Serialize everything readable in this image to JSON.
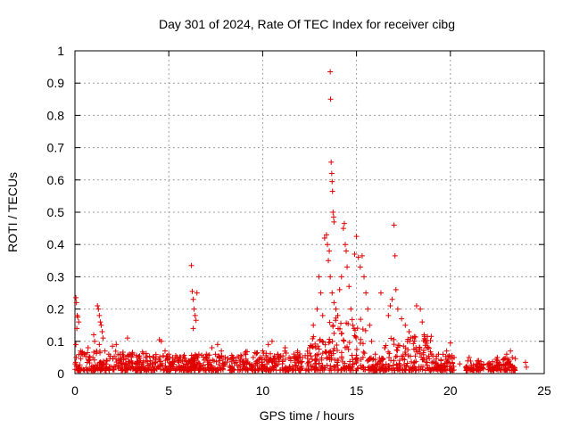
{
  "chart_data": {
    "type": "scatter",
    "title": "Day 301 of 2024, Rate Of TEC Index for receiver cibg",
    "xlabel": "GPS time / hours",
    "ylabel": "ROTI / TECUs",
    "xlim": [
      0,
      25
    ],
    "ylim": [
      0,
      1
    ],
    "xticks": [
      0,
      5,
      10,
      15,
      20,
      25
    ],
    "yticks": [
      0,
      0.1,
      0.2,
      0.3,
      0.4,
      0.5,
      0.6,
      0.7,
      0.8,
      0.9,
      1
    ],
    "ytick_labels": [
      "0",
      "0.1",
      "0.2",
      "0.3",
      "0.4",
      "0.5",
      "0.6",
      "0.7",
      "0.8",
      "0.9",
      "1"
    ],
    "grid": true,
    "marker": "+",
    "color": "#e00000",
    "series": [
      {
        "name": "ROTI",
        "points": [
          [
            0.05,
            0.235
          ],
          [
            0.08,
            0.22
          ],
          [
            0.12,
            0.18
          ],
          [
            0.15,
            0.175
          ],
          [
            0.1,
            0.14
          ],
          [
            0.2,
            0.16
          ],
          [
            0.05,
            0.09
          ],
          [
            0.3,
            0.07
          ],
          [
            0.5,
            0.06
          ],
          [
            0.7,
            0.08
          ],
          [
            0.8,
            0.05
          ],
          [
            1.0,
            0.12
          ],
          [
            1.05,
            0.1
          ],
          [
            1.2,
            0.21
          ],
          [
            1.25,
            0.2
          ],
          [
            1.3,
            0.18
          ],
          [
            1.35,
            0.16
          ],
          [
            1.4,
            0.15
          ],
          [
            1.45,
            0.13
          ],
          [
            1.5,
            0.11
          ],
          [
            1.3,
            0.09
          ],
          [
            1.6,
            0.07
          ],
          [
            1.8,
            0.06
          ],
          [
            2.0,
            0.085
          ],
          [
            2.2,
            0.09
          ],
          [
            2.4,
            0.06
          ],
          [
            2.6,
            0.05
          ],
          [
            2.8,
            0.11
          ],
          [
            3.0,
            0.05
          ],
          [
            3.5,
            0.04
          ],
          [
            4.0,
            0.03
          ],
          [
            4.2,
            0.05
          ],
          [
            4.5,
            0.105
          ],
          [
            4.6,
            0.1
          ],
          [
            4.8,
            0.07
          ],
          [
            5.0,
            0.06
          ],
          [
            5.2,
            0.05
          ],
          [
            5.5,
            0.04
          ],
          [
            6.0,
            0.03
          ],
          [
            6.2,
            0.335
          ],
          [
            6.25,
            0.255
          ],
          [
            6.3,
            0.23
          ],
          [
            6.35,
            0.2
          ],
          [
            6.4,
            0.18
          ],
          [
            6.45,
            0.165
          ],
          [
            6.3,
            0.14
          ],
          [
            6.5,
            0.25
          ],
          [
            6.6,
            0.06
          ],
          [
            7.0,
            0.06
          ],
          [
            7.3,
            0.08
          ],
          [
            7.6,
            0.09
          ],
          [
            7.8,
            0.07
          ],
          [
            8.0,
            0.05
          ],
          [
            8.5,
            0.04
          ],
          [
            9.0,
            0.035
          ],
          [
            9.5,
            0.05
          ],
          [
            10.0,
            0.07
          ],
          [
            10.3,
            0.09
          ],
          [
            10.5,
            0.1
          ],
          [
            10.8,
            0.06
          ],
          [
            11.2,
            0.08
          ],
          [
            11.5,
            0.04
          ],
          [
            12.0,
            0.05
          ],
          [
            12.5,
            0.08
          ],
          [
            12.7,
            0.15
          ],
          [
            12.9,
            0.2
          ],
          [
            13.0,
            0.3
          ],
          [
            13.1,
            0.25
          ],
          [
            13.2,
            0.18
          ],
          [
            13.3,
            0.42
          ],
          [
            13.4,
            0.43
          ],
          [
            13.45,
            0.4
          ],
          [
            13.5,
            0.35
          ],
          [
            13.55,
            0.38
          ],
          [
            13.6,
            0.935
          ],
          [
            13.62,
            0.85
          ],
          [
            13.65,
            0.655
          ],
          [
            13.68,
            0.62
          ],
          [
            13.7,
            0.595
          ],
          [
            13.72,
            0.565
          ],
          [
            13.75,
            0.5
          ],
          [
            13.78,
            0.485
          ],
          [
            13.8,
            0.47
          ],
          [
            13.6,
            0.3
          ],
          [
            13.7,
            0.25
          ],
          [
            13.8,
            0.22
          ],
          [
            13.9,
            0.2
          ],
          [
            14.0,
            0.18
          ],
          [
            14.1,
            0.26
          ],
          [
            14.2,
            0.3
          ],
          [
            14.3,
            0.45
          ],
          [
            14.35,
            0.465
          ],
          [
            14.4,
            0.4
          ],
          [
            14.45,
            0.38
          ],
          [
            14.5,
            0.33
          ],
          [
            14.6,
            0.27
          ],
          [
            14.7,
            0.2
          ],
          [
            14.8,
            0.15
          ],
          [
            14.9,
            0.37
          ],
          [
            15.0,
            0.425
          ],
          [
            15.1,
            0.36
          ],
          [
            15.2,
            0.33
          ],
          [
            15.3,
            0.365
          ],
          [
            15.4,
            0.3
          ],
          [
            15.5,
            0.25
          ],
          [
            15.6,
            0.2
          ],
          [
            15.7,
            0.15
          ],
          [
            15.8,
            0.1
          ],
          [
            16.0,
            0.06
          ],
          [
            16.3,
            0.25
          ],
          [
            16.5,
            0.08
          ],
          [
            16.7,
            0.18
          ],
          [
            16.8,
            0.21
          ],
          [
            16.9,
            0.23
          ],
          [
            17.0,
            0.46
          ],
          [
            17.05,
            0.365
          ],
          [
            17.1,
            0.26
          ],
          [
            17.2,
            0.2
          ],
          [
            17.4,
            0.17
          ],
          [
            17.6,
            0.15
          ],
          [
            17.8,
            0.13
          ],
          [
            18.0,
            0.11
          ],
          [
            18.2,
            0.21
          ],
          [
            18.4,
            0.2
          ],
          [
            18.5,
            0.16
          ],
          [
            18.6,
            0.12
          ],
          [
            18.8,
            0.08
          ],
          [
            19.0,
            0.06
          ],
          [
            19.5,
            0.04
          ],
          [
            19.8,
            0.07
          ],
          [
            20.0,
            0.095
          ],
          [
            20.2,
            0.05
          ],
          [
            20.5,
            0.03
          ],
          [
            21.0,
            0.05
          ],
          [
            21.5,
            0.04
          ],
          [
            22.0,
            0.03
          ],
          [
            22.5,
            0.05
          ],
          [
            23.0,
            0.06
          ],
          [
            23.2,
            0.07
          ],
          [
            23.3,
            0.05
          ],
          [
            24.0,
            0.035
          ],
          [
            24.05,
            0.02
          ]
        ]
      }
    ],
    "density_segments": [
      [
        0.0,
        4.0,
        0.01,
        0.07
      ],
      [
        4.0,
        6.0,
        0.01,
        0.06
      ],
      [
        6.0,
        9.0,
        0.01,
        0.06
      ],
      [
        9.0,
        12.5,
        0.01,
        0.07
      ],
      [
        12.5,
        13.5,
        0.01,
        0.12
      ],
      [
        13.5,
        15.5,
        0.01,
        0.18
      ],
      [
        15.5,
        16.5,
        0.01,
        0.05
      ],
      [
        16.5,
        19.0,
        0.01,
        0.12
      ],
      [
        19.0,
        20.2,
        0.01,
        0.06
      ],
      [
        20.8,
        21.8,
        0.01,
        0.04
      ],
      [
        22.0,
        23.5,
        0.01,
        0.05
      ]
    ]
  }
}
